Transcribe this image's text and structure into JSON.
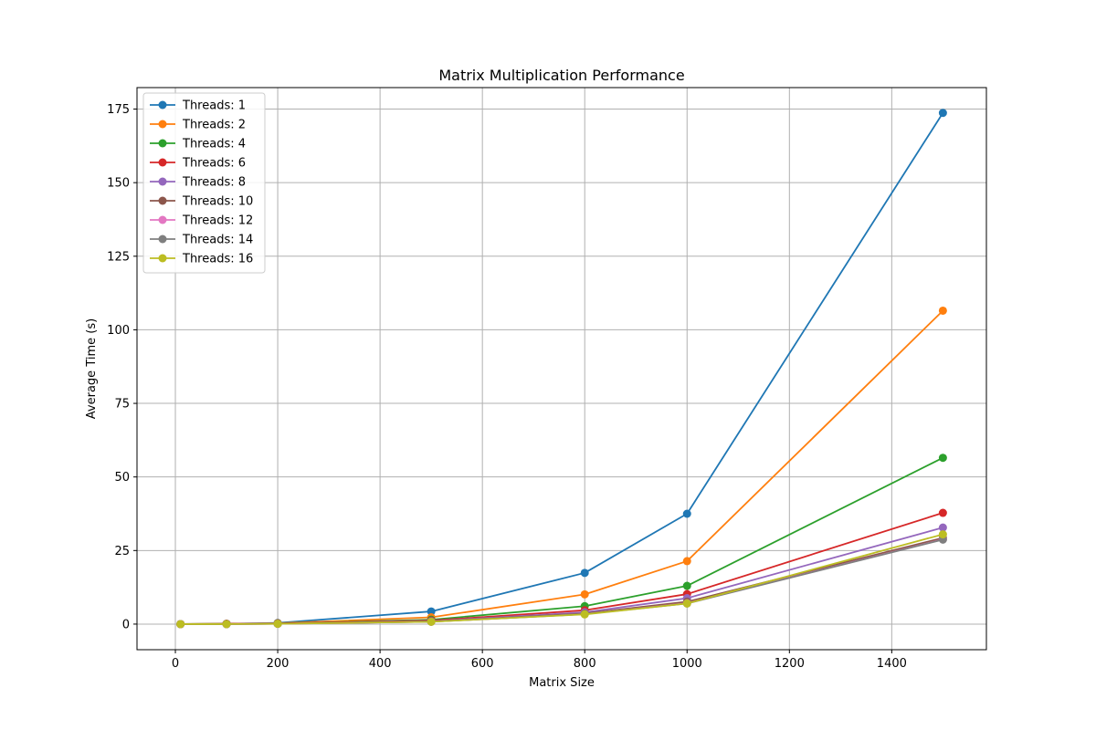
{
  "chart_data": {
    "type": "line",
    "title": "Matrix Multiplication Performance",
    "xlabel": "Matrix Size",
    "ylabel": "Average Time (s)",
    "x": [
      10,
      100,
      200,
      500,
      800,
      1000,
      1500
    ],
    "xlim": [
      -75,
      1585
    ],
    "ylim": [
      -8.7,
      182.3
    ],
    "xticks": [
      0,
      200,
      400,
      600,
      800,
      1000,
      1200,
      1400
    ],
    "yticks": [
      0,
      25,
      50,
      75,
      100,
      125,
      150,
      175
    ],
    "grid": true,
    "legend_position": "top-left",
    "series": [
      {
        "name": "Threads: 1",
        "color": "#1f77b4",
        "values": [
          0.0,
          0.1,
          0.4,
          4.3,
          17.4,
          37.5,
          173.7
        ]
      },
      {
        "name": "Threads: 2",
        "color": "#ff7f0e",
        "values": [
          0.0,
          0.1,
          0.3,
          2.3,
          10.1,
          21.4,
          106.5
        ]
      },
      {
        "name": "Threads: 4",
        "color": "#2ca02c",
        "values": [
          0.0,
          0.1,
          0.2,
          1.5,
          6.1,
          13.0,
          56.5
        ]
      },
      {
        "name": "Threads: 6",
        "color": "#d62728",
        "values": [
          0.0,
          0.1,
          0.2,
          1.2,
          4.7,
          10.2,
          37.8
        ]
      },
      {
        "name": "Threads: 8",
        "color": "#9467bd",
        "values": [
          0.0,
          0.0,
          0.1,
          1.0,
          4.0,
          8.8,
          32.8
        ]
      },
      {
        "name": "Threads: 10",
        "color": "#8c564b",
        "values": [
          0.0,
          0.0,
          0.1,
          0.9,
          3.6,
          7.6,
          29.3
        ]
      },
      {
        "name": "Threads: 12",
        "color": "#e377c2",
        "values": [
          0.0,
          0.0,
          0.1,
          0.8,
          3.4,
          7.1,
          28.8
        ]
      },
      {
        "name": "Threads: 14",
        "color": "#7f7f7f",
        "values": [
          0.0,
          0.0,
          0.1,
          0.8,
          3.4,
          7.0,
          28.7
        ]
      },
      {
        "name": "Threads: 16",
        "color": "#bcbd22",
        "values": [
          0.0,
          0.0,
          0.1,
          0.8,
          3.3,
          7.0,
          30.5
        ]
      }
    ]
  }
}
